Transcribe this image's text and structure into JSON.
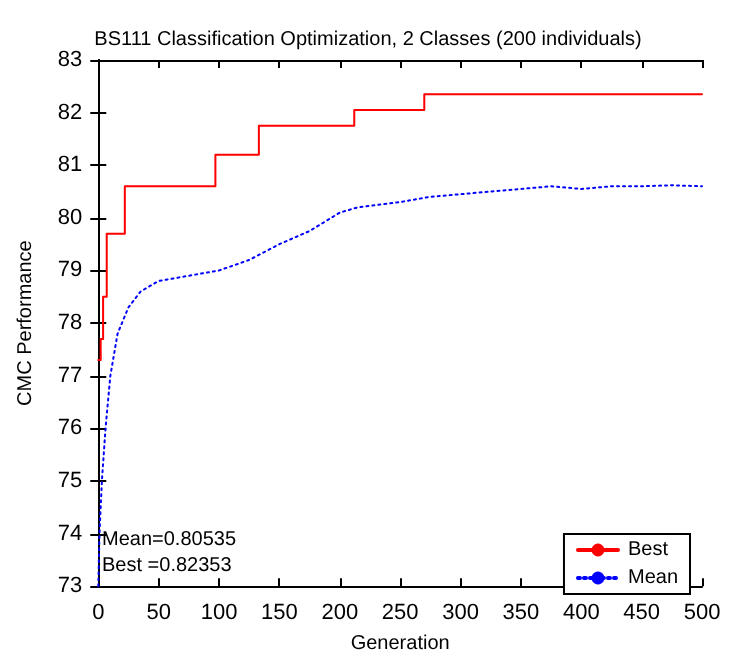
{
  "chart_data": {
    "type": "line",
    "title": "BS111 Classification Optimization, 2 Classes (200 individuals)",
    "xlabel": "Generation",
    "ylabel": "CMC Performance",
    "xlim": [
      0,
      500
    ],
    "xticks": [
      0,
      50,
      100,
      150,
      200,
      250,
      300,
      350,
      400,
      450,
      500
    ],
    "ylim": [
      73,
      83
    ],
    "yticks": [
      73,
      74,
      75,
      76,
      77,
      78,
      79,
      80,
      81,
      82,
      83
    ],
    "grid": false,
    "legend": "bottom right",
    "marker": "none",
    "annotations": [
      "Mean=0.80535",
      "Best =0.82353"
    ],
    "series": [
      {
        "name": "Best",
        "type": "step",
        "color": "#ff0000",
        "line_style": "solid",
        "x": [
          0,
          2,
          4,
          7,
          22,
          97,
          133,
          212,
          270,
          500
        ],
        "values": [
          77.3,
          77.7,
          78.5,
          79.7,
          80.6,
          81.2,
          81.75,
          82.05,
          82.35,
          82.35
        ]
      },
      {
        "name": "Mean",
        "color": "#0000ff",
        "line_style": "dotted",
        "x": [
          0,
          1,
          3,
          6,
          10,
          16,
          25,
          35,
          50,
          75,
          100,
          125,
          150,
          175,
          200,
          215,
          250,
          275,
          300,
          325,
          350,
          375,
          400,
          425,
          450,
          475,
          500
        ],
        "values": [
          73.0,
          74.0,
          75.0,
          76.0,
          77.0,
          77.8,
          78.3,
          78.6,
          78.8,
          78.9,
          79.0,
          79.2,
          79.5,
          79.75,
          80.1,
          80.2,
          80.3,
          80.4,
          80.45,
          80.5,
          80.55,
          80.6,
          80.55,
          80.6,
          80.6,
          80.62,
          80.6
        ]
      }
    ]
  }
}
